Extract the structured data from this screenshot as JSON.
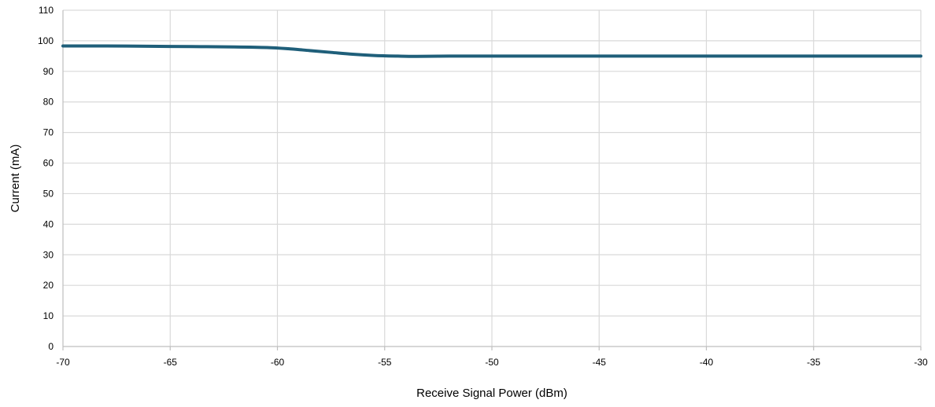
{
  "chart_data": {
    "type": "line",
    "title": "",
    "xlabel": "Receive Signal Power (dBm)",
    "ylabel": "Current (mA)",
    "xlim": [
      -70,
      -30
    ],
    "ylim": [
      0,
      110
    ],
    "x_ticks": [
      "-70",
      "-65",
      "-60",
      "-55",
      "-50",
      "-45",
      "-40",
      "-35",
      "-30"
    ],
    "y_ticks": [
      "0",
      "10",
      "20",
      "30",
      "40",
      "50",
      "60",
      "70",
      "80",
      "90",
      "100",
      "110"
    ],
    "grid": true,
    "legend": "none",
    "series": [
      {
        "color": "#1f5f7a",
        "x": [
          -70,
          -68,
          -66,
          -64,
          -62,
          -60.5,
          -59.5,
          -58.5,
          -57.5,
          -56.5,
          -55.5,
          -54.5,
          -53.5,
          -52,
          -50,
          -45,
          -40,
          -35,
          -30
        ],
        "y": [
          98.3,
          98.3,
          98.2,
          98.1,
          98.0,
          97.8,
          97.4,
          96.8,
          96.2,
          95.6,
          95.2,
          95.0,
          94.9,
          95.0,
          95.0,
          95.0,
          95.0,
          95.0,
          95.0
        ]
      }
    ]
  }
}
